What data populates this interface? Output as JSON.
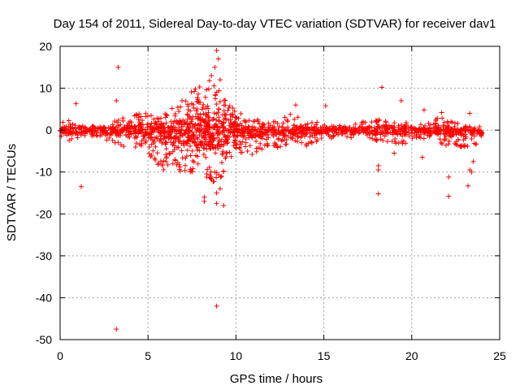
{
  "chart_data": {
    "type": "scatter",
    "title": "Day 154 of 2011, Sidereal Day-to-day VTEC variation (SDTVAR) for receiver dav1",
    "xlabel": "GPS time / hours",
    "ylabel": "SDTVAR / TECUs",
    "xlim": [
      0,
      25
    ],
    "ylim": [
      -50,
      20
    ],
    "xticks": [
      0,
      5,
      10,
      15,
      20,
      25
    ],
    "yticks": [
      -50,
      -40,
      -30,
      -20,
      -10,
      0,
      10,
      20
    ],
    "grid": true,
    "marker": "+",
    "series": [
      {
        "name": "SDTVAR",
        "color": "#ff0000",
        "dense_band": [
          [
            0.0,
            -1.5,
            2.0
          ],
          [
            0.5,
            -3.0,
            2.5
          ],
          [
            1.0,
            -2.0,
            1.5
          ],
          [
            1.5,
            -1.5,
            1.0
          ],
          [
            2.0,
            -1.5,
            1.0
          ],
          [
            2.5,
            -2.0,
            1.5
          ],
          [
            3.0,
            -3.5,
            2.0
          ],
          [
            3.5,
            -4.0,
            3.0
          ],
          [
            4.0,
            -3.5,
            3.5
          ],
          [
            4.5,
            -4.5,
            4.0
          ],
          [
            5.0,
            -6.0,
            4.5
          ],
          [
            5.5,
            -8.0,
            3.5
          ],
          [
            6.0,
            -10.0,
            5.0
          ],
          [
            6.5,
            -9.0,
            6.0
          ],
          [
            7.0,
            -11.0,
            7.5
          ],
          [
            7.5,
            -10.0,
            9.5
          ],
          [
            8.0,
            -13.0,
            10.5
          ],
          [
            8.5,
            -13.5,
            12.0
          ],
          [
            9.0,
            -12.0,
            10.0
          ],
          [
            9.5,
            -10.0,
            7.0
          ],
          [
            10.0,
            -7.0,
            5.0
          ],
          [
            10.5,
            -6.0,
            3.5
          ],
          [
            11.0,
            -6.0,
            2.5
          ],
          [
            11.5,
            -5.0,
            2.5
          ],
          [
            12.0,
            -4.0,
            2.0
          ],
          [
            12.5,
            -4.5,
            3.0
          ],
          [
            13.0,
            -3.0,
            4.0
          ],
          [
            13.5,
            -3.0,
            3.5
          ],
          [
            14.0,
            -4.0,
            2.0
          ],
          [
            14.5,
            -3.0,
            2.0
          ],
          [
            15.0,
            -2.0,
            1.5
          ],
          [
            15.5,
            -2.0,
            1.0
          ],
          [
            16.0,
            -1.5,
            1.5
          ],
          [
            16.5,
            -2.0,
            1.5
          ],
          [
            17.0,
            -2.0,
            2.0
          ],
          [
            17.5,
            -2.0,
            2.0
          ],
          [
            18.0,
            -2.5,
            2.5
          ],
          [
            18.5,
            -3.0,
            2.5
          ],
          [
            19.0,
            -4.0,
            2.0
          ],
          [
            19.5,
            -3.5,
            2.0
          ],
          [
            20.0,
            -2.5,
            1.5
          ],
          [
            20.5,
            -2.0,
            1.5
          ],
          [
            21.0,
            -2.5,
            2.5
          ],
          [
            21.5,
            -3.0,
            3.5
          ],
          [
            22.0,
            -4.0,
            3.5
          ],
          [
            22.5,
            -3.5,
            2.0
          ],
          [
            23.0,
            -5.0,
            1.5
          ],
          [
            23.5,
            -4.0,
            0.5
          ],
          [
            24.0,
            -2.0,
            0.0
          ]
        ],
        "outliers": [
          [
            3.3,
            15
          ],
          [
            3.2,
            7
          ],
          [
            0.9,
            6.3
          ],
          [
            1.2,
            -13.5
          ],
          [
            3.2,
            -47.5
          ],
          [
            8.9,
            19
          ],
          [
            9.0,
            17
          ],
          [
            8.8,
            15
          ],
          [
            8.6,
            13
          ],
          [
            9.1,
            12
          ],
          [
            8.9,
            -42
          ],
          [
            8.2,
            -16
          ],
          [
            8.2,
            -17
          ],
          [
            8.9,
            -17.5
          ],
          [
            9.3,
            -18
          ],
          [
            8.9,
            -15
          ],
          [
            9.1,
            -14
          ],
          [
            13.4,
            6
          ],
          [
            15.1,
            5.8
          ],
          [
            18.3,
            10.2
          ],
          [
            19.4,
            7
          ],
          [
            20.7,
            4.8
          ],
          [
            18.1,
            -15.2
          ],
          [
            18.1,
            -8.5
          ],
          [
            18.1,
            -9.5
          ],
          [
            22.1,
            -11.2
          ],
          [
            22.1,
            -15.8
          ],
          [
            23.3,
            4
          ],
          [
            23.2,
            -13.3
          ],
          [
            23.3,
            -9.5
          ],
          [
            23.4,
            -10
          ],
          [
            23.5,
            -7.5
          ],
          [
            19.0,
            -5.5
          ],
          [
            20.6,
            -6.5
          ],
          [
            21.7,
            4.2
          ]
        ]
      }
    ]
  }
}
